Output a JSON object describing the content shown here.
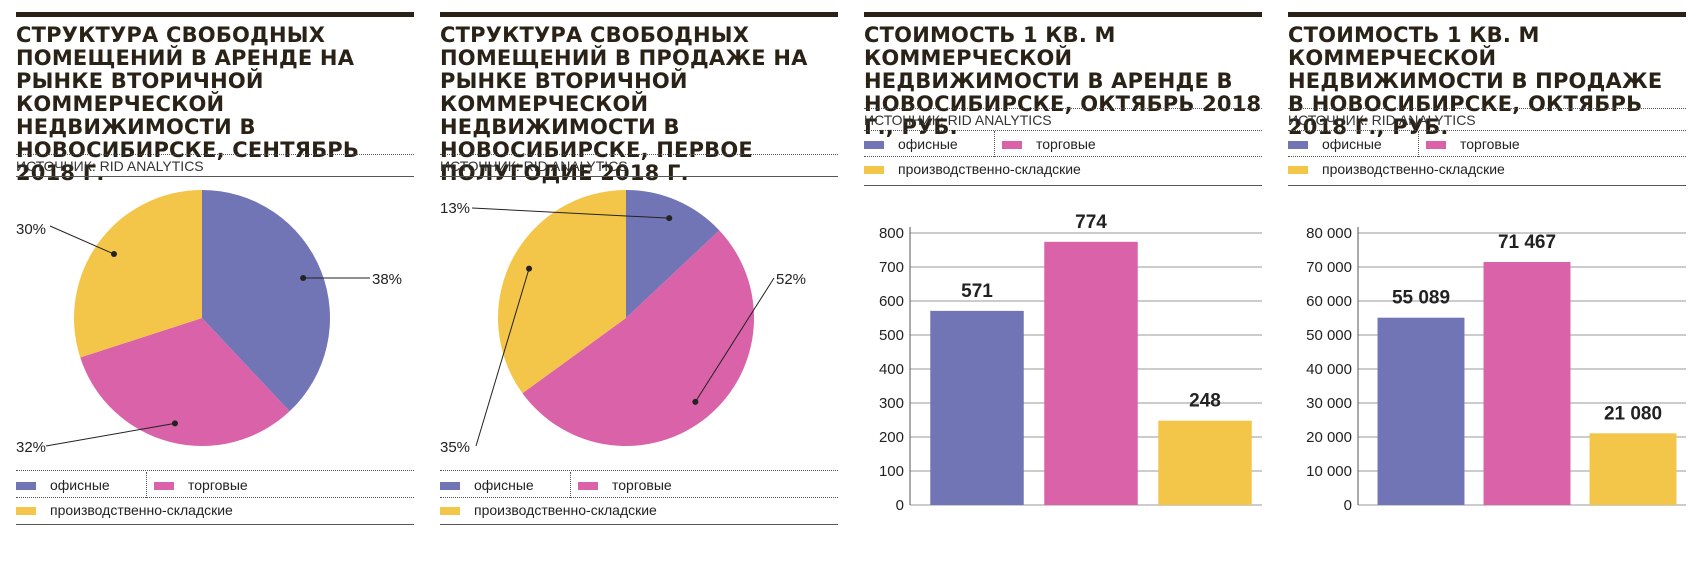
{
  "colors": {
    "office": "#7174b5",
    "retail": "#d962a9",
    "industrial": "#f3c548"
  },
  "legend": {
    "office": "офисные",
    "retail": "торговые",
    "industrial": "производственно-складские"
  },
  "panels": [
    {
      "title": "Структура свободных помещений в аренде на рынке вторичной коммерческой недвижимости в Новосибирске, сентябрь 2018 г.",
      "source": "ИСТОЧНИК: RID ANALYTICS"
    },
    {
      "title": "Структура свободных помещений в продаже на рынке вторичной коммерческой недвижимости в Новосибирске, первое полугодие 2018 г.",
      "source": "ИСТОЧНИК: RID ANALYTICS"
    },
    {
      "title": "Стоимость 1 кв. м коммерческой недвижимости в аренде в Новосибирске, октябрь 2018 г., руб.",
      "source": "ИСТОЧНИК: RID ANALYTICS"
    },
    {
      "title": "Стоимость 1 кв. м коммерческой недвижимости в продаже в Новосибирске, октябрь 2018 г., руб.",
      "source": "ИСТОЧНИК: RID ANALYTICS"
    }
  ],
  "chart_data": [
    {
      "type": "pie",
      "categories": [
        "офисные",
        "торговые",
        "производственно-складские"
      ],
      "values": [
        38,
        32,
        30
      ],
      "labels": [
        "38%",
        "32%",
        "30%"
      ]
    },
    {
      "type": "pie",
      "categories": [
        "офисные",
        "торговые",
        "производственно-складские"
      ],
      "values": [
        13,
        52,
        35
      ],
      "labels": [
        "13%",
        "52%",
        "35%"
      ]
    },
    {
      "type": "bar",
      "categories": [
        "офисные",
        "торговые",
        "производственно-складские"
      ],
      "values": [
        571,
        774,
        248
      ],
      "labels": [
        "571",
        "774",
        "248"
      ],
      "ylim": [
        0,
        800
      ],
      "yticks": [
        "0",
        "100",
        "200",
        "300",
        "400",
        "500",
        "600",
        "700",
        "800"
      ],
      "grid": true
    },
    {
      "type": "bar",
      "categories": [
        "офисные",
        "торговые",
        "производственно-складские"
      ],
      "values": [
        55089,
        71467,
        21080
      ],
      "labels": [
        "55 089",
        "71 467",
        "21 080"
      ],
      "ylim": [
        0,
        80000
      ],
      "yticks": [
        "0",
        "10 000",
        "20 000",
        "30 000",
        "40 000",
        "50 000",
        "60 000",
        "70 000",
        "80 000"
      ],
      "grid": true
    }
  ]
}
